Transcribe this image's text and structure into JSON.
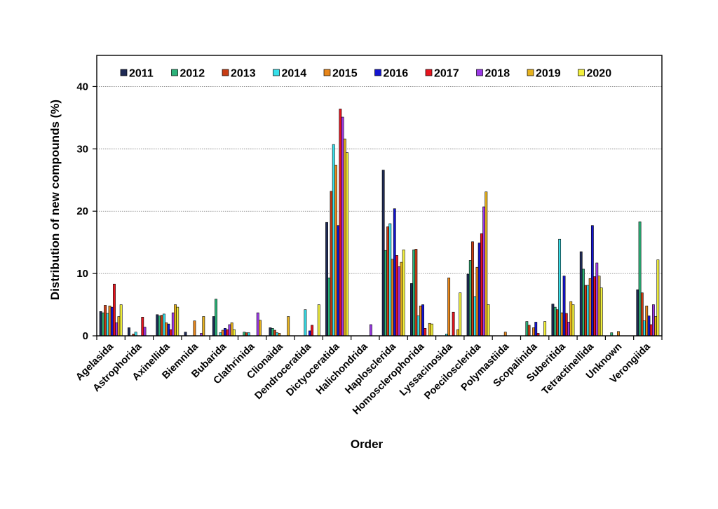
{
  "chart_data": {
    "type": "bar",
    "title": "",
    "xlabel": "Order",
    "ylabel": "Distribution of new compounds (%)",
    "ylim": [
      0,
      45
    ],
    "yticks": [
      0,
      10,
      20,
      30,
      40
    ],
    "grid": "horizontal dotted",
    "legend_position": "top",
    "categories": [
      "Agelasida",
      "Astrophorida",
      "Axinellida",
      "Biemnida",
      "Bubarida",
      "Clathrinida",
      "Clionaida",
      "Dendroceratida",
      "Dictyoceratida",
      "Halichondrida",
      "Haplosclerida",
      "Homosclerophorida",
      "Lyssacinosida",
      "Poecilosclerida",
      "Polymastiida",
      "Scopalinida",
      "Suberitida",
      "Tetractinellida",
      "Unknown",
      "Verongiida"
    ],
    "series": [
      {
        "name": "2011",
        "color": "#1f2a55",
        "values": [
          3.9,
          1.3,
          3.4,
          0.6,
          3.1,
          0.0,
          1.3,
          0.0,
          18.2,
          0.0,
          26.6,
          8.4,
          0.0,
          9.9,
          0.0,
          0.0,
          5.1,
          13.5,
          0.0,
          7.4
        ]
      },
      {
        "name": "2012",
        "color": "#2db37a",
        "values": [
          3.7,
          0.0,
          3.2,
          0.0,
          5.9,
          0.6,
          1.2,
          0.0,
          9.3,
          0.0,
          13.7,
          13.8,
          0.0,
          12.1,
          0.0,
          2.3,
          4.6,
          10.7,
          0.5,
          18.3
        ]
      },
      {
        "name": "2013",
        "color": "#c83c14",
        "values": [
          4.9,
          0.3,
          3.3,
          0.0,
          0.0,
          0.5,
          0.9,
          0.0,
          23.2,
          0.0,
          17.5,
          13.9,
          0.0,
          15.1,
          0.0,
          1.7,
          4.2,
          8.1,
          0.0,
          6.9
        ]
      },
      {
        "name": "2014",
        "color": "#36e0ea",
        "values": [
          3.6,
          0.6,
          3.5,
          0.0,
          0.5,
          0.5,
          0.5,
          4.2,
          30.7,
          0.0,
          18.0,
          3.2,
          0.3,
          6.3,
          0.0,
          0.0,
          15.5,
          8.1,
          0.0,
          2.4
        ]
      },
      {
        "name": "2015",
        "color": "#e8861a",
        "values": [
          4.8,
          0.0,
          2.1,
          2.4,
          0.9,
          0.0,
          0.4,
          0.0,
          27.4,
          0.0,
          12.3,
          4.8,
          9.3,
          11.0,
          0.6,
          1.3,
          3.7,
          9.2,
          0.7,
          4.8
        ]
      },
      {
        "name": "2016",
        "color": "#1414d0",
        "values": [
          4.6,
          0.0,
          1.9,
          0.0,
          1.2,
          0.0,
          0.0,
          0.8,
          17.7,
          0.0,
          20.4,
          5.0,
          0.0,
          14.9,
          0.0,
          2.2,
          9.6,
          17.7,
          0.0,
          3.2
        ]
      },
      {
        "name": "2017",
        "color": "#e8141e",
        "values": [
          8.3,
          3.0,
          1.0,
          0.0,
          1.0,
          0.0,
          0.0,
          1.7,
          36.4,
          0.0,
          12.9,
          1.2,
          3.8,
          16.4,
          0.0,
          0.4,
          3.6,
          9.5,
          0.0,
          1.8
        ]
      },
      {
        "name": "2018",
        "color": "#9b3ae6",
        "values": [
          2.1,
          1.4,
          3.7,
          0.4,
          1.8,
          3.7,
          0.0,
          0.0,
          35.1,
          1.8,
          11.1,
          0.0,
          0.0,
          20.7,
          0.0,
          0.0,
          2.2,
          11.7,
          0.0,
          5.0
        ]
      },
      {
        "name": "2019",
        "color": "#e6b21e",
        "values": [
          3.1,
          0.0,
          5.0,
          3.1,
          2.1,
          2.5,
          3.1,
          0.0,
          31.6,
          0.0,
          11.8,
          2.0,
          1.0,
          23.1,
          0.0,
          0.0,
          5.5,
          9.6,
          0.0,
          3.1
        ]
      },
      {
        "name": "2020",
        "color": "#f2f03c",
        "values": [
          5.0,
          0.0,
          4.6,
          0.0,
          1.0,
          0.0,
          0.0,
          5.0,
          29.4,
          0.0,
          13.8,
          1.9,
          6.9,
          5.0,
          0.0,
          2.3,
          5.0,
          7.7,
          0.0,
          12.2
        ]
      }
    ]
  }
}
